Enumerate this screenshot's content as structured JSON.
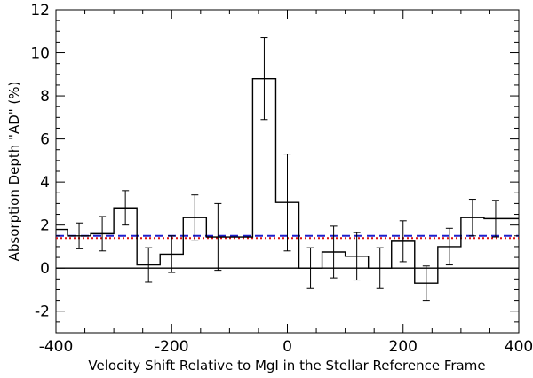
{
  "chart_data": {
    "type": "line",
    "title": "",
    "xlabel": "Velocity Shift Relative to MgI in the Stellar Reference Frame",
    "ylabel": "Absorption Depth \"AD\" (%)",
    "xlim": [
      -400,
      400
    ],
    "ylim": [
      -3,
      12
    ],
    "x_ticks": [
      "-400",
      "-200",
      "0",
      "200",
      "400"
    ],
    "y_ticks": [
      "-2",
      "0",
      "2",
      "4",
      "6",
      "8",
      "10",
      "12"
    ],
    "grid": false,
    "series": [
      {
        "style": "steps",
        "color": "#000000",
        "bins": [
          {
            "x_start": -400,
            "x_end": -380,
            "y": 1.8,
            "err": null
          },
          {
            "x_start": -380,
            "x_end": -340,
            "y": 1.5,
            "err": 0.6
          },
          {
            "x_start": -340,
            "x_end": -300,
            "y": 1.6,
            "err": 0.8
          },
          {
            "x_start": -300,
            "x_end": -260,
            "y": 2.8,
            "err": 0.8
          },
          {
            "x_start": -260,
            "x_end": -220,
            "y": 0.15,
            "err": 0.8
          },
          {
            "x_start": -220,
            "x_end": -180,
            "y": 0.65,
            "err": 0.85
          },
          {
            "x_start": -180,
            "x_end": -140,
            "y": 2.35,
            "err": 1.05
          },
          {
            "x_start": -140,
            "x_end": -100,
            "y": 1.45,
            "err": 1.55
          },
          {
            "x_start": -100,
            "x_end": -60,
            "y": 1.45,
            "err": null
          },
          {
            "x_start": -60,
            "x_end": -20,
            "y": 8.8,
            "err": 1.9
          },
          {
            "x_start": -20,
            "x_end": 20,
            "y": 3.05,
            "err": 2.25
          },
          {
            "x_start": 20,
            "x_end": 60,
            "y": 0.0,
            "err": 0.95
          },
          {
            "x_start": 60,
            "x_end": 100,
            "y": 0.75,
            "err": 1.2
          },
          {
            "x_start": 100,
            "x_end": 140,
            "y": 0.55,
            "err": 1.1
          },
          {
            "x_start": 140,
            "x_end": 180,
            "y": 0.0,
            "err": 0.95
          },
          {
            "x_start": 180,
            "x_end": 220,
            "y": 1.25,
            "err": 0.95
          },
          {
            "x_start": 220,
            "x_end": 260,
            "y": -0.7,
            "err": 0.8
          },
          {
            "x_start": 260,
            "x_end": 300,
            "y": 1.0,
            "err": 0.85
          },
          {
            "x_start": 300,
            "x_end": 340,
            "y": 2.35,
            "err": 0.85
          },
          {
            "x_start": 340,
            "x_end": 380,
            "y": 2.3,
            "err": 0.85
          },
          {
            "x_start": 380,
            "x_end": 400,
            "y": 2.3,
            "err": null
          }
        ]
      },
      {
        "style": "hline",
        "y": 1.5,
        "color": "#1f1fcc",
        "dash": "dashed"
      },
      {
        "style": "hline",
        "y": 1.4,
        "color": "#dd1111",
        "dash": "dotted"
      },
      {
        "style": "hline",
        "y": 0,
        "color": "#000000",
        "dash": "solid"
      }
    ]
  }
}
